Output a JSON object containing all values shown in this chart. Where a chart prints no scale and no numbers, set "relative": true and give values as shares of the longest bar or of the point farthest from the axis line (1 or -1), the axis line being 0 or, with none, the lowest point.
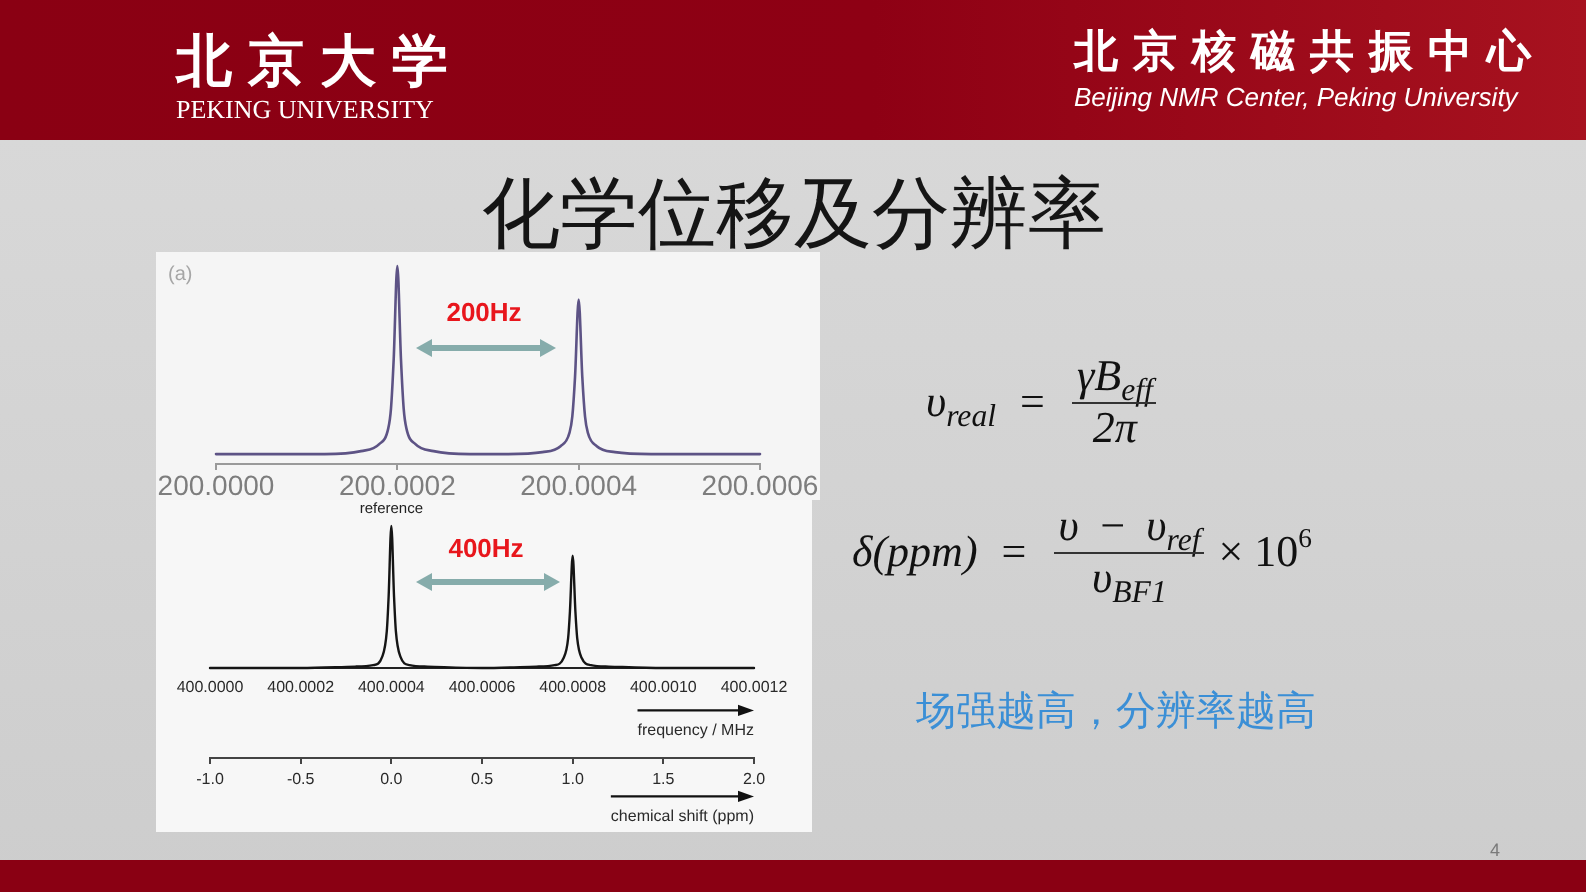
{
  "chart_data": [
    {
      "type": "other",
      "title": "化学位移及分辨率",
      "annotations": [
        "北京大学",
        "PEKING UNIVERSITY",
        "北京核磁共振中心",
        "Beijing NMR Center, Peking University"
      ]
    },
    {
      "type": "line",
      "relative": true,
      "x": [
        200.0,
        200.0001,
        200.00012,
        200.00016,
        200.00018,
        200.00019,
        200.000193,
        200.000196,
        200.0002,
        200.000204,
        200.000207,
        200.00021,
        200.00022,
        200.00024,
        200.00028,
        200.00032,
        200.00036,
        200.00038,
        200.00039,
        200.000393,
        200.000396,
        200.0004,
        200.000404,
        200.000407,
        200.00041,
        200.00042,
        200.00044,
        200.00048,
        200.0005,
        200.0006
      ],
      "values": [
        0.05,
        0.05,
        0.05,
        0.065,
        0.1,
        0.18,
        0.28,
        0.53,
        1,
        0.53,
        0.28,
        0.18,
        0.1,
        0.065,
        0.05,
        0.05,
        0.06,
        0.09,
        0.16,
        0.24,
        0.44,
        0.83,
        0.44,
        0.24,
        0.16,
        0.09,
        0.06,
        0.05,
        0.05,
        0.05
      ],
      "color": "#5d5385",
      "xlim": [
        200.0,
        200.0006
      ],
      "xticks": [
        {
          "value": 200.0,
          "label": "200.0000"
        },
        {
          "value": 200.0002,
          "label": "200.0002"
        },
        {
          "value": 200.0004,
          "label": "200.0004"
        },
        {
          "value": 200.0006,
          "label": "200.0006"
        }
      ],
      "annotations": [
        "(a)",
        "200Hz"
      ]
    },
    {
      "type": "line",
      "relative": true,
      "x": [
        400.0,
        400.0002,
        400.00032,
        400.00036,
        400.00038,
        400.00039,
        400.000394,
        400.0004,
        400.000406,
        400.00041,
        400.00042,
        400.00044,
        400.00048,
        400.0006,
        400.00072,
        400.00076,
        400.00078,
        400.00079,
        400.000794,
        400.0008,
        400.000806,
        400.00081,
        400.00082,
        400.00084,
        400.00088,
        400.001,
        400.0012
      ],
      "values": [
        0,
        0,
        0.01,
        0.02,
        0.08,
        0.26,
        0.5,
        1,
        0.5,
        0.26,
        0.08,
        0.02,
        0.01,
        0,
        0.01,
        0.02,
        0.07,
        0.21,
        0.4,
        0.79,
        0.4,
        0.21,
        0.07,
        0.02,
        0.01,
        0,
        0
      ],
      "color": "#151515",
      "xlim": [
        400.0,
        400.0012
      ],
      "xticks": [
        {
          "value": 400.0,
          "label": "400.0000"
        },
        {
          "value": 400.0002,
          "label": "400.0002"
        },
        {
          "value": 400.0004,
          "label": "400.0004"
        },
        {
          "value": 400.0006,
          "label": "400.0006"
        },
        {
          "value": 400.0008,
          "label": "400.0008"
        },
        {
          "value": 400.001,
          "label": "400.0010"
        },
        {
          "value": 400.0012,
          "label": "400.0012"
        }
      ],
      "xlabel": "frequency / MHz",
      "x2lim": [
        -1.0,
        2.0
      ],
      "x2ticks": [
        {
          "value": -1,
          "label": "-1.0"
        },
        {
          "value": -0.5,
          "label": "-0.5"
        },
        {
          "value": 0,
          "label": "0.0"
        },
        {
          "value": 0.5,
          "label": "0.5"
        },
        {
          "value": 1,
          "label": "1.0"
        },
        {
          "value": 1.5,
          "label": "1.5"
        },
        {
          "value": 2,
          "label": "2.0"
        }
      ],
      "x2label": "chemical shift (ppm)",
      "annotations": [
        {
          "text": "reference",
          "x": 400.0004,
          "y": 1
        },
        "400Hz"
      ]
    },
    {
      "type": "other",
      "annotations": [
        "υ$_{real}$",
        "=",
        "γB$_{eff}$",
        "2π",
        "δ(ppm)",
        "=",
        "υ − υ$_{ref}$",
        "υ$_{BF1}$",
        "× 10$^{6}$",
        "场强越高，分辨率越高",
        "4"
      ]
    }
  ]
}
